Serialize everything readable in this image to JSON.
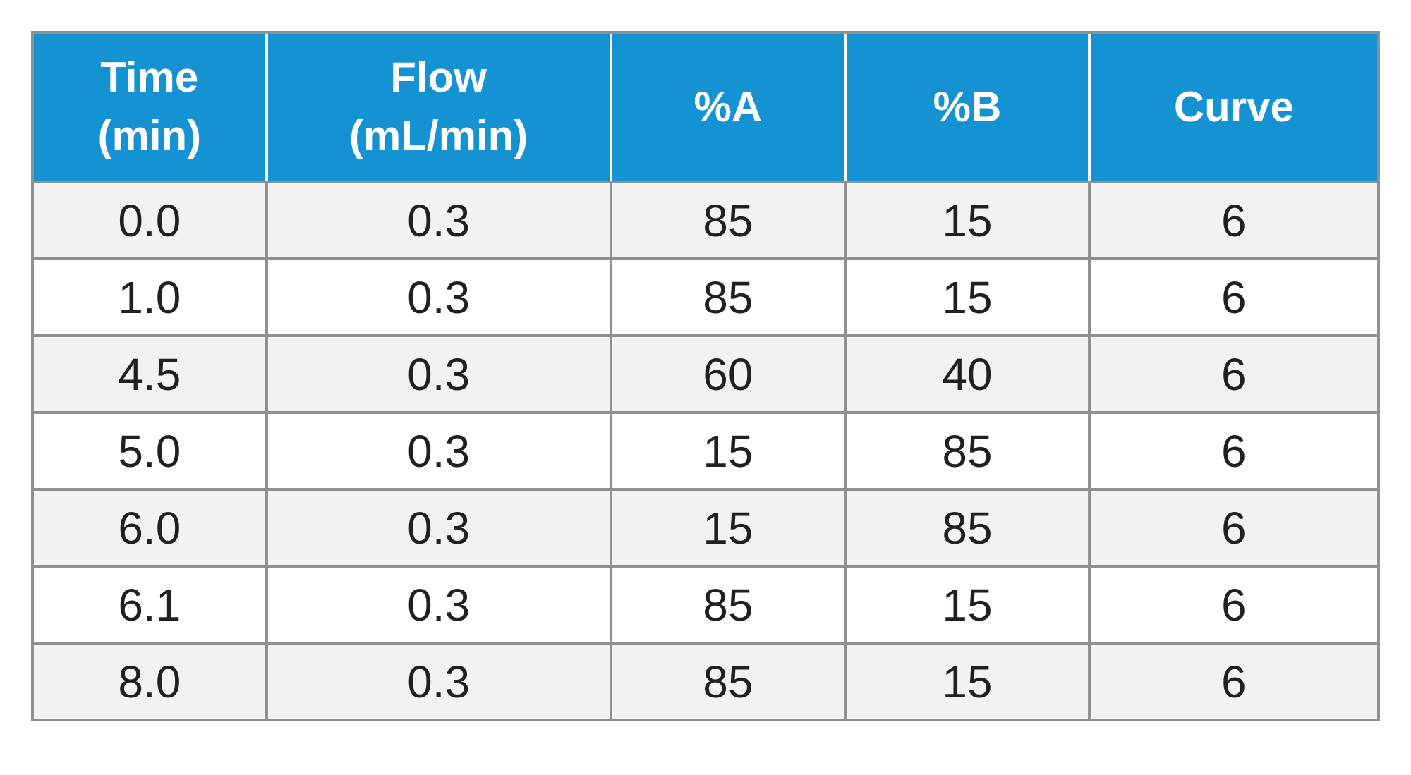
{
  "colors": {
    "header_bg": "#1492d2",
    "header_text": "#ffffff",
    "grid_border": "#8e9093",
    "row_stripe": "#f2f2f4",
    "row_plain": "#ffffff",
    "cell_text": "#231f20"
  },
  "table": {
    "columns": [
      {
        "label": "Time\n(min)"
      },
      {
        "label": "Flow\n(mL/min)"
      },
      {
        "label": "%A"
      },
      {
        "label": "%B"
      },
      {
        "label": "Curve"
      }
    ],
    "rows": [
      {
        "cells": [
          "0.0",
          "0.3",
          "85",
          "15",
          "6"
        ]
      },
      {
        "cells": [
          "1.0",
          "0.3",
          "85",
          "15",
          "6"
        ]
      },
      {
        "cells": [
          "4.5",
          "0.3",
          "60",
          "40",
          "6"
        ]
      },
      {
        "cells": [
          "5.0",
          "0.3",
          "15",
          "85",
          "6"
        ]
      },
      {
        "cells": [
          "6.0",
          "0.3",
          "15",
          "85",
          "6"
        ]
      },
      {
        "cells": [
          "6.1",
          "0.3",
          "85",
          "15",
          "6"
        ]
      },
      {
        "cells": [
          "8.0",
          "0.3",
          "85",
          "15",
          "6"
        ]
      }
    ]
  },
  "chart_data": {
    "type": "table",
    "columns": [
      "Time (min)",
      "Flow (mL/min)",
      "%A",
      "%B",
      "Curve"
    ],
    "rows": [
      [
        0.0,
        0.3,
        85,
        15,
        6
      ],
      [
        1.0,
        0.3,
        85,
        15,
        6
      ],
      [
        4.5,
        0.3,
        60,
        40,
        6
      ],
      [
        5.0,
        0.3,
        15,
        85,
        6
      ],
      [
        6.0,
        0.3,
        15,
        85,
        6
      ],
      [
        6.1,
        0.3,
        85,
        15,
        6
      ],
      [
        8.0,
        0.3,
        85,
        15,
        6
      ]
    ],
    "layout": {
      "header_fill": "#1492d2",
      "zebra_striping": true,
      "grid": true
    }
  }
}
